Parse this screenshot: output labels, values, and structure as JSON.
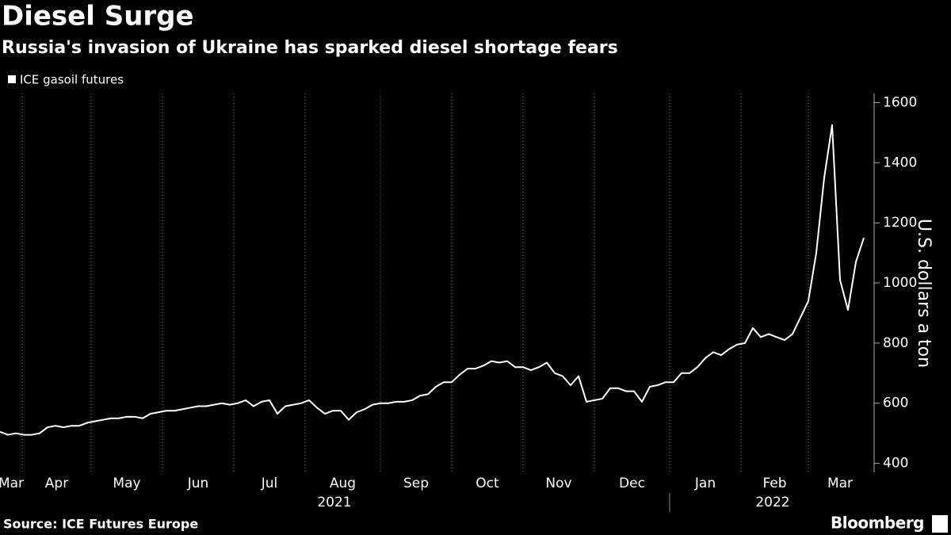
{
  "chart_data": {
    "type": "line",
    "title": "Diesel Surge",
    "subtitle": "Russia's invasion of Ukraine has sparked diesel shortage fears",
    "y_axis_label": "U.S. dollars a ton",
    "source": "Source: ICE Futures Europe",
    "brand": "Bloomberg",
    "month_labels": [
      "Mar",
      "Apr",
      "May",
      "Jun",
      "Jul",
      "Aug",
      "Sep",
      "Oct",
      "Nov",
      "Dec",
      "Jan",
      "Feb",
      "Mar"
    ],
    "years": [
      "2021",
      "2022"
    ],
    "xlim": [
      0,
      110
    ],
    "xticks": [
      2.8,
      11.5,
      20.5,
      29.5,
      38.5,
      48,
      57,
      66,
      75,
      84.5,
      93.5,
      102
    ],
    "ylim": [
      370,
      1630
    ],
    "yticks": [
      400,
      600,
      800,
      1000,
      1200,
      1400,
      1600
    ],
    "grid": true,
    "series": [
      {
        "name": "ICE gasoil futures",
        "color": "#ffffff",
        "values": [
          505,
          495,
          500,
          495,
          495,
          500,
          520,
          525,
          520,
          525,
          525,
          535,
          540,
          545,
          550,
          550,
          555,
          555,
          550,
          565,
          570,
          575,
          575,
          580,
          585,
          590,
          590,
          595,
          600,
          595,
          600,
          610,
          590,
          605,
          610,
          565,
          590,
          595,
          600,
          610,
          585,
          565,
          575,
          575,
          545,
          570,
          580,
          595,
          600,
          600,
          605,
          605,
          610,
          625,
          630,
          655,
          670,
          670,
          695,
          715,
          715,
          725,
          740,
          735,
          740,
          720,
          720,
          710,
          720,
          735,
          700,
          690,
          660,
          690,
          605,
          610,
          615,
          650,
          650,
          640,
          640,
          605,
          655,
          660,
          670,
          670,
          700,
          700,
          720,
          750,
          770,
          760,
          780,
          795,
          800,
          850,
          820,
          830,
          820,
          810,
          830,
          885,
          940,
          1100,
          1350,
          1525,
          1010,
          910,
          1070,
          1150
        ]
      }
    ]
  }
}
